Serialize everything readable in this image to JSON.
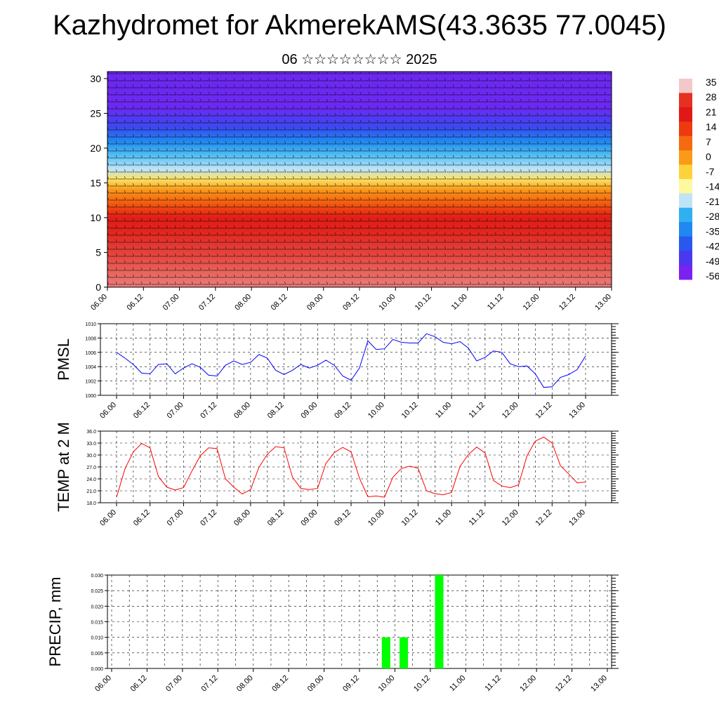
{
  "title": "Kazhydromet for AkmerekAMS(43.3635 77.0045)",
  "subtitle": "06 ☆☆☆☆☆☆☆☆ 2025",
  "time_ticks": [
    "06.00",
    "06.12",
    "07.00",
    "07.12",
    "08.00",
    "08.12",
    "09.00",
    "09.12",
    "10.00",
    "10.12",
    "11.00",
    "11.12",
    "12.00",
    "12.12",
    "13.00"
  ],
  "colorbar": {
    "labels": [
      "35",
      "28",
      "21",
      "14",
      "7",
      "0",
      "-7",
      "-14",
      "-21",
      "-28",
      "-35",
      "-42",
      "-49",
      "-56"
    ],
    "colors": [
      "#f4c8c8",
      "#e63020",
      "#e01818",
      "#ee3a10",
      "#f56a10",
      "#fb9a18",
      "#fdd23a",
      "#fef8a0",
      "#bfe4f8",
      "#30b0f0",
      "#2088f0",
      "#2858f0",
      "#4a38f0",
      "#7a22f0"
    ]
  },
  "chart_data": [
    {
      "type": "heatmap",
      "title": "",
      "xlabel": "",
      "ylabel": "",
      "ylim": [
        0,
        31
      ],
      "yticks": [
        0,
        5,
        10,
        15,
        20,
        25,
        30
      ],
      "x": [
        "06.00",
        "06.12",
        "07.00",
        "07.12",
        "08.00",
        "08.12",
        "09.00",
        "09.12",
        "10.00",
        "10.12",
        "11.00",
        "11.12",
        "12.00",
        "12.12",
        "13.00"
      ],
      "temperature_profile": [
        {
          "level": 0,
          "value": 33
        },
        {
          "level": 4,
          "value": 30
        },
        {
          "level": 8,
          "value": 26
        },
        {
          "level": 10,
          "value": 20
        },
        {
          "level": 12,
          "value": 10
        },
        {
          "level": 14,
          "value": 2
        },
        {
          "level": 15.5,
          "value": -7
        },
        {
          "level": 17,
          "value": -14
        },
        {
          "level": 19,
          "value": -25
        },
        {
          "level": 21,
          "value": -35
        },
        {
          "level": 23,
          "value": -45
        },
        {
          "level": 26,
          "value": -56
        },
        {
          "level": 31,
          "value": -56
        }
      ],
      "overlay": "wind barbs"
    },
    {
      "type": "line",
      "ylabel": "PMSL",
      "ylim": [
        1000,
        1010
      ],
      "yticks": [
        "1000",
        "1002",
        "1004",
        "1006",
        "1008",
        "1010"
      ],
      "color": "#0000ff",
      "x": [
        0,
        3,
        6,
        9,
        12,
        15,
        18,
        21,
        24,
        27,
        30,
        33,
        36,
        39,
        42,
        45,
        48,
        51,
        54,
        57,
        60,
        63,
        66,
        69,
        72,
        75,
        78,
        81,
        84,
        87,
        90,
        93,
        96,
        99,
        102,
        105,
        108,
        111,
        114,
        117,
        120,
        123,
        126,
        129,
        132,
        135,
        138,
        141,
        144,
        147,
        150,
        153,
        156,
        159,
        162,
        165,
        168
      ],
      "values": [
        1006.0,
        1005.2,
        1004.3,
        1003.1,
        1003.0,
        1004.3,
        1004.4,
        1003.0,
        1003.8,
        1004.4,
        1003.9,
        1002.8,
        1002.7,
        1004.2,
        1004.8,
        1004.3,
        1004.6,
        1005.7,
        1005.2,
        1003.5,
        1002.9,
        1003.5,
        1004.3,
        1003.8,
        1004.2,
        1004.9,
        1004.2,
        1002.7,
        1002.1,
        1003.8,
        1007.6,
        1006.4,
        1006.5,
        1007.8,
        1007.4,
        1007.3,
        1007.3,
        1008.6,
        1008.2,
        1007.4,
        1007.2,
        1007.5,
        1006.6,
        1004.8,
        1005.3,
        1006.2,
        1006.0,
        1004.4,
        1004.0,
        1004.1,
        1003.0,
        1001.1,
        1001.2,
        1002.5,
        1002.9,
        1003.6,
        1005.5
      ]
    },
    {
      "type": "line",
      "ylabel": "TEMP at 2 M",
      "ylim": [
        18,
        36
      ],
      "yticks": [
        "18.0",
        "21.0",
        "24.0",
        "27.0",
        "30.0",
        "33.0",
        "36.0"
      ],
      "color": "#ff0000",
      "x": [
        0,
        3,
        6,
        9,
        12,
        15,
        18,
        21,
        24,
        27,
        30,
        33,
        36,
        39,
        42,
        45,
        48,
        51,
        54,
        57,
        60,
        63,
        66,
        69,
        72,
        75,
        78,
        81,
        84,
        87,
        90,
        93,
        96,
        99,
        102,
        105,
        108,
        111,
        114,
        117,
        120,
        123,
        126,
        129,
        132,
        135,
        138,
        141,
        144,
        147,
        150,
        153,
        156,
        159,
        162,
        165,
        168
      ],
      "values": [
        19.4,
        26.5,
        30.8,
        32.9,
        31.8,
        24.6,
        21.9,
        21.2,
        21.8,
        26.0,
        29.8,
        31.8,
        31.6,
        24.0,
        21.9,
        20.2,
        21.3,
        26.9,
        30.2,
        32.1,
        31.8,
        24.4,
        21.6,
        21.3,
        21.6,
        27.9,
        30.6,
        31.9,
        30.8,
        24.2,
        19.5,
        19.7,
        19.4,
        24.4,
        26.6,
        27.2,
        26.7,
        21.0,
        20.3,
        20.0,
        20.6,
        27.1,
        30.1,
        32.0,
        30.5,
        23.6,
        22.2,
        21.8,
        22.5,
        29.8,
        33.5,
        34.5,
        33.0,
        27.3,
        25.2,
        23.0,
        23.2
      ]
    },
    {
      "type": "bar",
      "ylabel": "PRECIP, mm",
      "ylim": [
        0,
        0.03
      ],
      "yticks": [
        "0.000",
        "0.005",
        "0.010",
        "0.015",
        "0.020",
        "0.025",
        "0.030"
      ],
      "color": "#00ff00",
      "x": [
        93,
        99,
        111
      ],
      "values": [
        0.01,
        0.01,
        0.03
      ]
    }
  ]
}
